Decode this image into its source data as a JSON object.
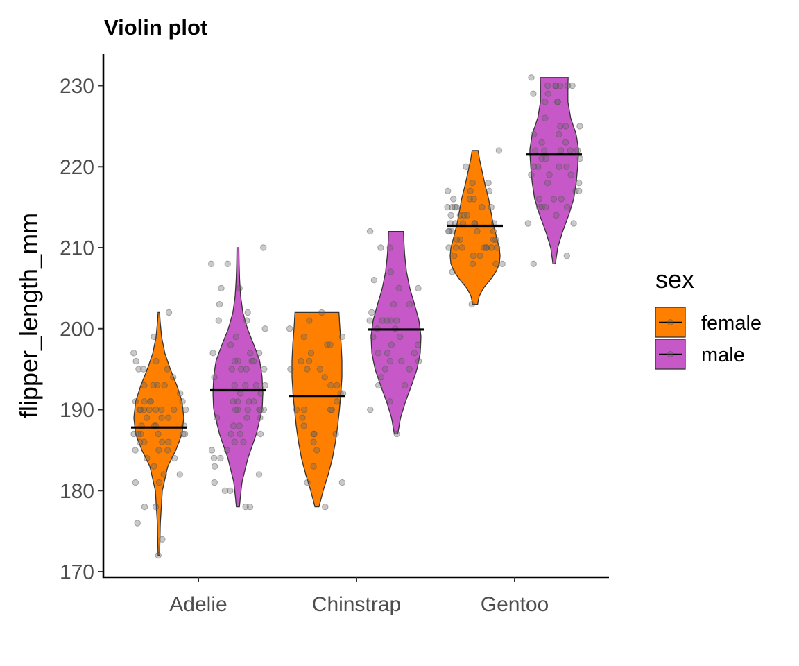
{
  "chart_data": {
    "type": "violin",
    "title": "Violin plot",
    "xlabel": "",
    "ylabel": "flipper_length_mm",
    "ylim": [
      169.5,
      234
    ],
    "yticks": [
      170,
      180,
      190,
      200,
      210,
      220,
      230
    ],
    "categories": [
      "Adelie",
      "Chinstrap",
      "Gentoo"
    ],
    "legend": {
      "title": "sex",
      "position": "right",
      "items": [
        {
          "label": "female",
          "color": "#FF8000"
        },
        {
          "label": "male",
          "color": "#C758C8"
        }
      ]
    },
    "series": [
      {
        "name": "female",
        "color": "#FF8000",
        "groups": [
          {
            "category": "Adelie",
            "mean": 187.8,
            "min": 172,
            "max": 202,
            "density": [
              [
                172,
                0.03
              ],
              [
                176,
                0.06
              ],
              [
                180,
                0.14
              ],
              [
                183,
                0.36
              ],
              [
                185,
                0.68
              ],
              [
                187,
                0.93
              ],
              [
                189,
                1.0
              ],
              [
                191,
                0.93
              ],
              [
                193,
                0.72
              ],
              [
                195,
                0.46
              ],
              [
                197,
                0.24
              ],
              [
                199,
                0.11
              ],
              [
                201,
                0.05
              ],
              [
                202,
                0.03
              ]
            ],
            "points": [
              172,
              174,
              176,
              178,
              178,
              181,
              181,
              182,
              182,
              183,
              184,
              184,
              185,
              185,
              185,
              186,
              186,
              186,
              186,
              187,
              187,
              187,
              187,
              187,
              187,
              188,
              188,
              188,
              188,
              189,
              189,
              189,
              190,
              190,
              190,
              190,
              190,
              190,
              190,
              190,
              191,
              191,
              191,
              191,
              191,
              192,
              193,
              193,
              193,
              193,
              194,
              195,
              195,
              195,
              196,
              196,
              197,
              199,
              202
            ]
          },
          {
            "category": "Chinstrap",
            "mean": 191.7,
            "min": 178,
            "max": 202,
            "density": [
              [
                178,
                0.08
              ],
              [
                180,
                0.25
              ],
              [
                182,
                0.45
              ],
              [
                184,
                0.62
              ],
              [
                186,
                0.74
              ],
              [
                188,
                0.83
              ],
              [
                190,
                0.9
              ],
              [
                192,
                0.96
              ],
              [
                194,
                1.0
              ],
              [
                196,
                1.0
              ],
              [
                198,
                0.97
              ],
              [
                200,
                0.92
              ],
              [
                202,
                0.88
              ]
            ],
            "points": [
              178,
              181,
              181,
              183,
              185,
              186,
              187,
              187,
              187,
              188,
              189,
              190,
              190,
              190,
              190,
              191,
              192,
              192,
              193,
              193,
              194,
              195,
              195,
              195,
              196,
              196,
              197,
              198,
              198,
              199,
              199,
              200,
              201,
              202
            ]
          },
          {
            "category": "Gentoo",
            "mean": 212.7,
            "min": 203,
            "max": 222,
            "density": [
              [
                203,
                0.1
              ],
              [
                204,
                0.16
              ],
              [
                205,
                0.33
              ],
              [
                206,
                0.6
              ],
              [
                207,
                0.83
              ],
              [
                208,
                0.97
              ],
              [
                209,
                1.0
              ],
              [
                210,
                0.97
              ],
              [
                211,
                0.88
              ],
              [
                212,
                0.8
              ],
              [
                213,
                0.72
              ],
              [
                214,
                0.66
              ],
              [
                215,
                0.6
              ],
              [
                216,
                0.54
              ],
              [
                217,
                0.46
              ],
              [
                218,
                0.38
              ],
              [
                219,
                0.31
              ],
              [
                220,
                0.24
              ],
              [
                221,
                0.17
              ],
              [
                222,
                0.12
              ]
            ],
            "points": [
              203,
              207,
              208,
              208,
              208,
              209,
              209,
              209,
              210,
              210,
              210,
              210,
              210,
              210,
              210,
              210,
              211,
              211,
              211,
              211,
              212,
              212,
              212,
              212,
              212,
              213,
              213,
              213,
              213,
              213,
              213,
              214,
              214,
              214,
              214,
              215,
              215,
              215,
              215,
              215,
              215,
              216,
              216,
              216,
              217,
              217,
              217,
              218,
              218,
              220,
              222
            ]
          }
        ]
      },
      {
        "name": "male",
        "color": "#C758C8",
        "groups": [
          {
            "category": "Adelie",
            "mean": 192.4,
            "min": 178,
            "max": 210,
            "density": [
              [
                178,
                0.06
              ],
              [
                181,
                0.16
              ],
              [
                184,
                0.4
              ],
              [
                187,
                0.74
              ],
              [
                190,
                0.97
              ],
              [
                192,
                1.0
              ],
              [
                194,
                0.97
              ],
              [
                196,
                0.88
              ],
              [
                198,
                0.64
              ],
              [
                200,
                0.38
              ],
              [
                202,
                0.2
              ],
              [
                204,
                0.11
              ],
              [
                206,
                0.07
              ],
              [
                208,
                0.05
              ],
              [
                210,
                0.04
              ]
            ],
            "points": [
              178,
              178,
              180,
              180,
              181,
              182,
              183,
              184,
              184,
              185,
              185,
              186,
              186,
              187,
              187,
              187,
              188,
              188,
              189,
              189,
              189,
              190,
              190,
              190,
              190,
              190,
              190,
              191,
              191,
              191,
              191,
              192,
              192,
              193,
              193,
              193,
              193,
              194,
              195,
              195,
              195,
              195,
              196,
              196,
              196,
              196,
              197,
              197,
              197,
              198,
              199,
              200,
              201,
              201,
              202,
              203,
              205,
              205,
              208,
              208,
              210
            ]
          },
          {
            "category": "Chinstrap",
            "mean": 199.9,
            "min": 187,
            "max": 212,
            "density": [
              [
                187,
                0.07
              ],
              [
                189,
                0.18
              ],
              [
                191,
                0.38
              ],
              [
                193,
                0.62
              ],
              [
                195,
                0.84
              ],
              [
                197,
                0.97
              ],
              [
                199,
                1.0
              ],
              [
                201,
                0.92
              ],
              [
                203,
                0.74
              ],
              [
                205,
                0.55
              ],
              [
                207,
                0.42
              ],
              [
                209,
                0.35
              ],
              [
                211,
                0.31
              ],
              [
                212,
                0.3
              ]
            ],
            "points": [
              187,
              190,
              191,
              193,
              193,
              194,
              195,
              195,
              196,
              196,
              196,
              197,
              197,
              197,
              198,
              198,
              199,
              199,
              200,
              200,
              201,
              201,
              201,
              201,
              201,
              202,
              203,
              203,
              205,
              205,
              206,
              207,
              210,
              210,
              212
            ]
          },
          {
            "category": "Gentoo",
            "mean": 221.5,
            "min": 208,
            "max": 231,
            "density": [
              [
                208,
                0.05
              ],
              [
                210,
                0.14
              ],
              [
                212,
                0.34
              ],
              [
                214,
                0.58
              ],
              [
                216,
                0.78
              ],
              [
                218,
                0.88
              ],
              [
                220,
                0.94
              ],
              [
                222,
                0.98
              ],
              [
                224,
                0.88
              ],
              [
                226,
                0.66
              ],
              [
                228,
                0.55
              ],
              [
                230,
                0.55
              ],
              [
                231,
                0.56
              ]
            ],
            "points": [
              208,
              209,
              213,
              213,
              214,
              215,
              215,
              215,
              215,
              216,
              216,
              216,
              217,
              217,
              218,
              218,
              219,
              219,
              219,
              220,
              220,
              220,
              220,
              221,
              221,
              221,
              222,
              222,
              222,
              222,
              222,
              223,
              223,
              224,
              224,
              225,
              225,
              225,
              226,
              228,
              228,
              228,
              229,
              229,
              230,
              230,
              230,
              230,
              230,
              230,
              231
            ]
          }
        ]
      }
    ]
  }
}
